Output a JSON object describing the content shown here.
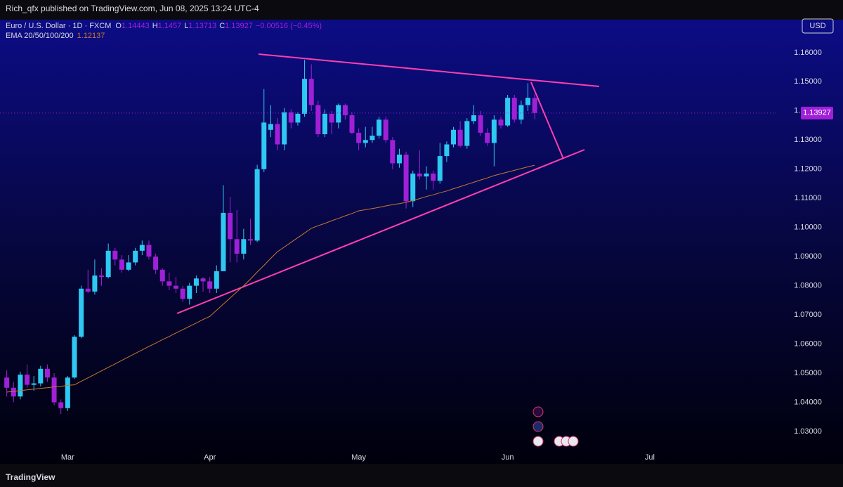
{
  "header": {
    "published": "Rich_qfx published on TradingView.com, Jun 08, 2025 13:24 UTC-4",
    "currency": "USD",
    "brand": "TradingView"
  },
  "chart_data": {
    "type": "candlestick",
    "symbol": "Euro / U.S. Dollar · 1D · FXCM",
    "ohlc_labels": [
      "O",
      "H",
      "L",
      "C"
    ],
    "change": "−0.00516",
    "change_percent": "(−0.45%)",
    "up_color": "#2ec8f2",
    "down_color": "#a020d8",
    "open": [
      1.0485,
      1.045,
      1.042,
      1.0495,
      1.046,
      1.0465,
      1.0515,
      1.0485,
      1.04,
      1.038,
      1.0485,
      1.0625,
      1.079,
      1.078,
      1.0835,
      1.083,
      1.092,
      1.089,
      1.0855,
      1.088,
      1.092,
      1.094,
      1.09,
      1.0855,
      1.0815,
      1.08,
      1.079,
      1.0755,
      1.08,
      1.0825,
      1.0815,
      1.079,
      1.085,
      1.105,
      1.096,
      1.091,
      1.096,
      1.0955,
      1.12,
      1.1335,
      1.1355,
      1.1285,
      1.1395,
      1.136,
      1.139,
      1.151,
      1.142,
      1.132,
      1.139,
      1.136,
      1.142,
      1.1385,
      1.1325,
      1.129,
      1.13,
      1.1315,
      1.137,
      1.13,
      1.122,
      1.125,
      1.109,
      1.1185,
      1.1175,
      1.1185,
      1.116,
      1.1245,
      1.1285,
      1.1335,
      1.128,
      1.1365,
      1.1385,
      1.1325,
      1.129,
      1.137,
      1.135,
      1.1445,
      1.137,
      1.142,
      1.14443
    ],
    "high": [
      1.051,
      1.047,
      1.0505,
      1.053,
      1.049,
      1.0525,
      1.053,
      1.05,
      1.041,
      1.049,
      1.063,
      1.08,
      1.0855,
      1.089,
      1.086,
      1.0945,
      1.093,
      1.0905,
      1.0905,
      1.093,
      1.0955,
      1.0955,
      1.091,
      1.086,
      1.0845,
      1.083,
      1.08,
      1.081,
      1.0835,
      1.083,
      1.083,
      1.087,
      1.1145,
      1.1105,
      1.106,
      1.0995,
      1.103,
      1.1215,
      1.1475,
      1.142,
      1.1375,
      1.141,
      1.1405,
      1.1395,
      1.1575,
      1.156,
      1.1435,
      1.1405,
      1.14,
      1.1425,
      1.1425,
      1.1395,
      1.134,
      1.1345,
      1.1345,
      1.138,
      1.138,
      1.131,
      1.127,
      1.126,
      1.1195,
      1.1265,
      1.121,
      1.1195,
      1.129,
      1.1295,
      1.1345,
      1.1365,
      1.1375,
      1.142,
      1.14,
      1.134,
      1.1385,
      1.138,
      1.1455,
      1.1455,
      1.1435,
      1.1495,
      1.1457
    ],
    "low": [
      1.042,
      1.04,
      1.041,
      1.045,
      1.044,
      1.0455,
      1.047,
      1.039,
      1.036,
      1.037,
      1.048,
      1.062,
      1.0775,
      1.077,
      1.08,
      1.0825,
      1.087,
      1.0845,
      1.085,
      1.087,
      1.0905,
      1.089,
      1.084,
      1.08,
      1.0785,
      1.0775,
      1.0745,
      1.0735,
      1.0775,
      1.078,
      1.0775,
      1.0775,
      1.085,
      1.088,
      1.088,
      1.089,
      1.094,
      1.095,
      1.119,
      1.131,
      1.1265,
      1.1265,
      1.134,
      1.135,
      1.138,
      1.14,
      1.131,
      1.131,
      1.132,
      1.134,
      1.137,
      1.132,
      1.1265,
      1.1275,
      1.129,
      1.1305,
      1.129,
      1.12,
      1.1205,
      1.1065,
      1.107,
      1.1165,
      1.113,
      1.113,
      1.115,
      1.1225,
      1.1275,
      1.1275,
      1.127,
      1.1355,
      1.1315,
      1.128,
      1.121,
      1.134,
      1.1345,
      1.136,
      1.1355,
      1.14,
      1.13713
    ],
    "close": [
      1.045,
      1.042,
      1.0495,
      1.046,
      1.0465,
      1.0515,
      1.0485,
      1.04,
      1.038,
      1.0485,
      1.0625,
      1.079,
      1.078,
      1.0835,
      1.083,
      1.092,
      1.089,
      1.0855,
      1.088,
      1.092,
      1.094,
      1.09,
      1.0855,
      1.0815,
      1.08,
      1.079,
      1.0755,
      1.08,
      1.0825,
      1.0815,
      1.079,
      1.085,
      1.105,
      1.096,
      1.091,
      1.096,
      1.0955,
      1.12,
      1.136,
      1.1355,
      1.1285,
      1.1395,
      1.136,
      1.139,
      1.151,
      1.142,
      1.132,
      1.139,
      1.136,
      1.142,
      1.1385,
      1.1325,
      1.129,
      1.13,
      1.1315,
      1.137,
      1.13,
      1.122,
      1.125,
      1.109,
      1.1185,
      1.1175,
      1.1185,
      1.116,
      1.1245,
      1.1285,
      1.1335,
      1.128,
      1.1365,
      1.1385,
      1.1325,
      1.129,
      1.137,
      1.135,
      1.1445,
      1.137,
      1.142,
      1.1445,
      1.13927
    ],
    "ema": {
      "name": "EMA 20/50/100/200",
      "color": "#c8782c",
      "values": [
        1.0435,
        1.0438,
        1.044,
        1.0443,
        1.0445,
        1.0448,
        1.045,
        1.0453,
        1.0455,
        1.0458,
        1.046,
        1.0472,
        1.0484,
        1.0496,
        1.0508,
        1.052,
        1.0532,
        1.0544,
        1.0556,
        1.0568,
        1.058,
        1.0592,
        1.0603,
        1.0615,
        1.0626,
        1.0638,
        1.0649,
        1.0661,
        1.0672,
        1.0684,
        1.0695,
        1.0716,
        1.0737,
        1.0758,
        1.0779,
        1.08,
        1.0823,
        1.0847,
        1.087,
        1.0894,
        1.0917,
        1.0933,
        1.0949,
        1.0965,
        1.0981,
        1.0997,
        1.1006,
        1.1014,
        1.1023,
        1.1031,
        1.104,
        1.1048,
        1.1057,
        1.1061,
        1.1065,
        1.1069,
        1.1074,
        1.1078,
        1.1082,
        1.1086,
        1.1093,
        1.1099,
        1.1106,
        1.1112,
        1.1119,
        1.1125,
        1.1133,
        1.114,
        1.1148,
        1.1155,
        1.1163,
        1.117,
        1.1178,
        1.1184,
        1.119,
        1.1196,
        1.1202,
        1.1208,
        1.12137
      ]
    },
    "xlim": [
      -1,
      114
    ],
    "xticks": [
      {
        "value": 9,
        "label": "Mar"
      },
      {
        "value": 30,
        "label": "Apr"
      },
      {
        "value": 52,
        "label": "May"
      },
      {
        "value": 74,
        "label": "Jun"
      },
      {
        "value": 95,
        "label": "Jul"
      }
    ],
    "ylim": [
      1.0189,
      1.1713
    ],
    "yticks": [
      {
        "value": 1.03,
        "label": "1.03000"
      },
      {
        "value": 1.04,
        "label": "1.04000"
      },
      {
        "value": 1.05,
        "label": "1.05000"
      },
      {
        "value": 1.06,
        "label": "1.06000"
      },
      {
        "value": 1.07,
        "label": "1.07000"
      },
      {
        "value": 1.08,
        "label": "1.08000"
      },
      {
        "value": 1.09,
        "label": "1.09000"
      },
      {
        "value": 1.1,
        "label": "1.10000"
      },
      {
        "value": 1.11,
        "label": "1.11000"
      },
      {
        "value": 1.12,
        "label": "1.12000"
      },
      {
        "value": 1.13,
        "label": "1.13000"
      },
      {
        "value": 1.14,
        "label": "1.14000"
      },
      {
        "value": 1.15,
        "label": "1.15000"
      },
      {
        "value": 1.16,
        "label": "1.16000"
      }
    ],
    "grid": false
  }
}
